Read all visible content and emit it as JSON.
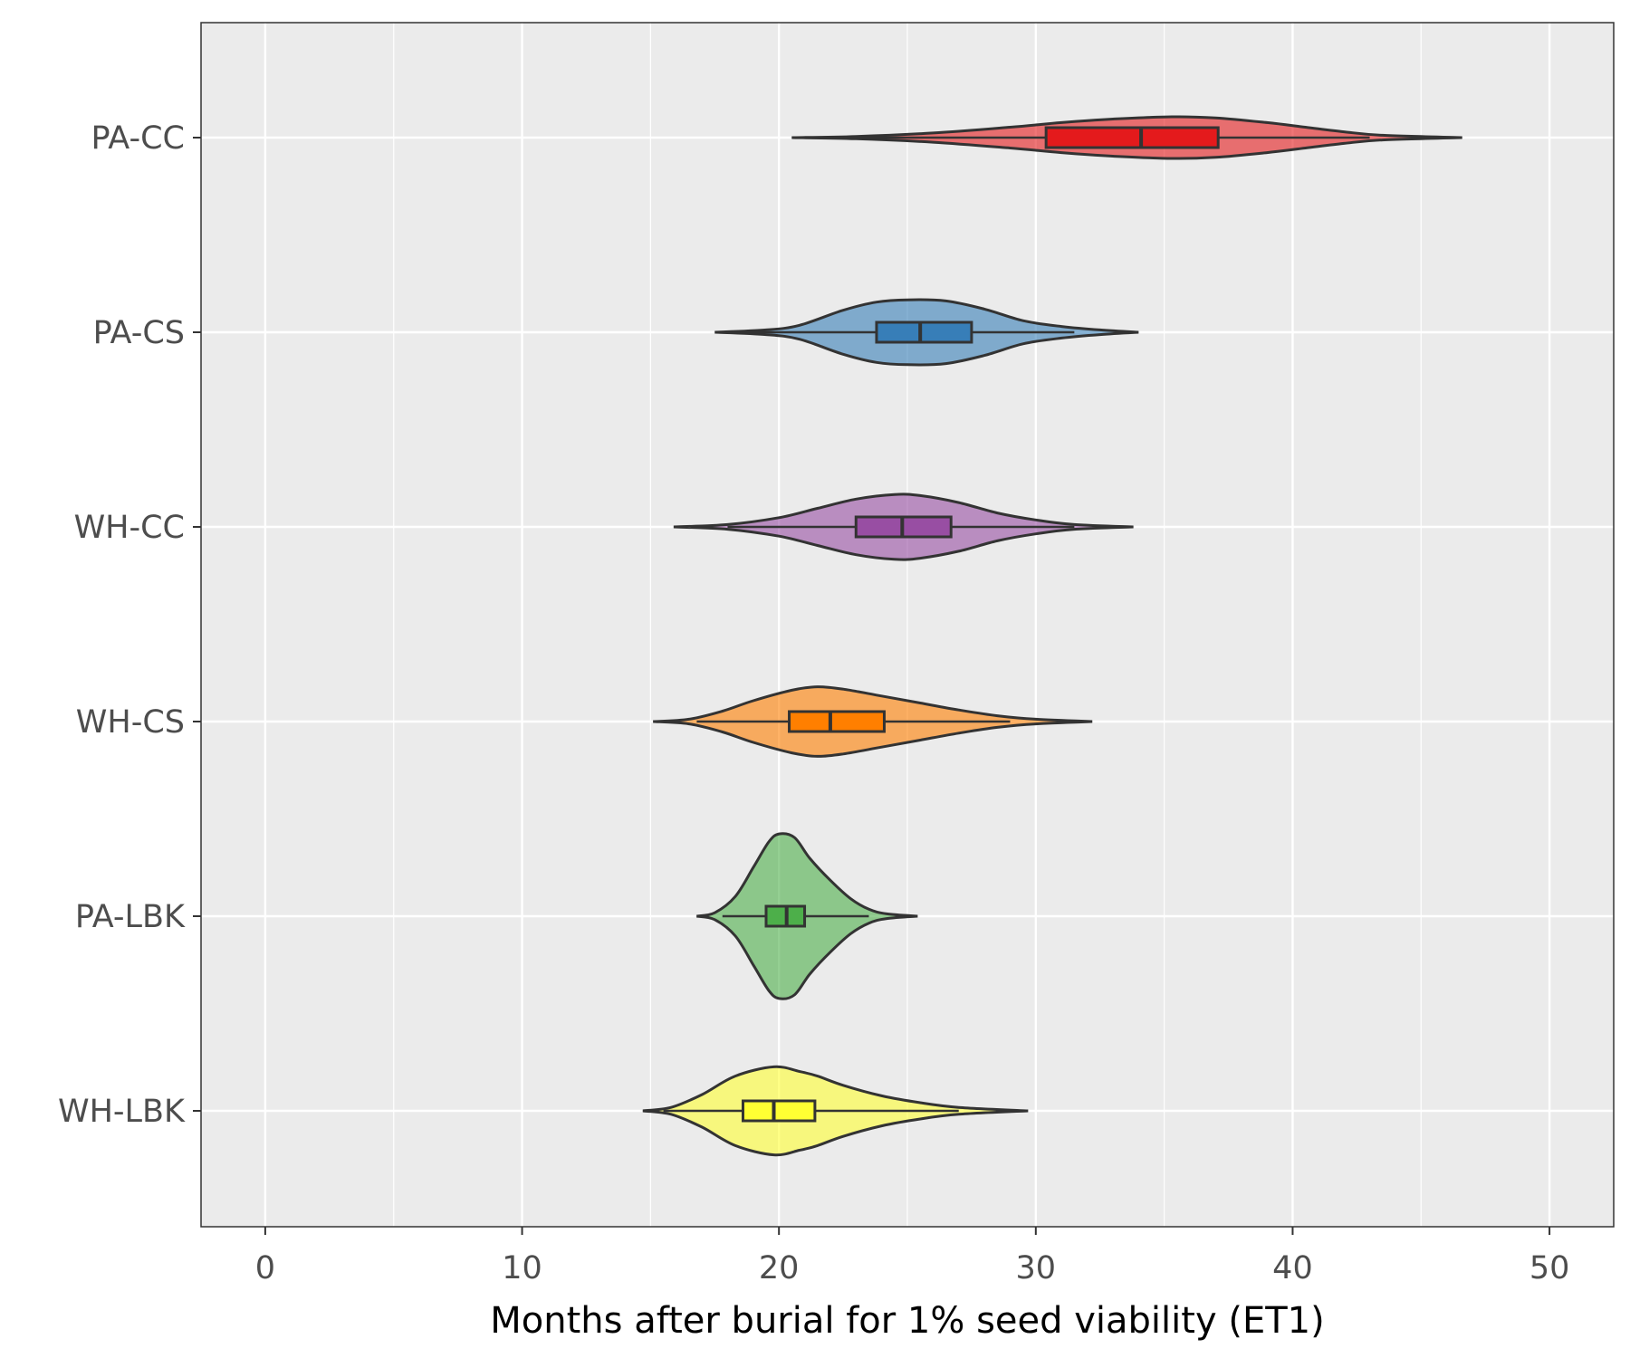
{
  "chart_data": {
    "type": "violin",
    "xlabel": "Months after burial for 1% seed viability (ET1)",
    "ylabel": "",
    "title": "",
    "xlim": [
      -2.5,
      52.5
    ],
    "x_ticks": [
      0,
      10,
      20,
      30,
      40,
      50
    ],
    "x_tick_labels": [
      "0",
      "10",
      "20",
      "30",
      "40",
      "50"
    ],
    "x_minor_gridlines": [
      5,
      15,
      25,
      35,
      45
    ],
    "grid": true,
    "legend": "none",
    "categories": [
      "PA-CC",
      "PA-CS",
      "WH-CC",
      "WH-CS",
      "PA-LBK",
      "WH-LBK"
    ],
    "series": [
      {
        "category": "PA-CC",
        "color": "#e41a1c",
        "min": 20.5,
        "q1": 30.4,
        "median": 34.1,
        "q3": 37.1,
        "max": 46.6,
        "whisker_low": 20.5,
        "whisker_high": 43.0,
        "density": [
          [
            20.5,
            0.0
          ],
          [
            23,
            0.01
          ],
          [
            26,
            0.04
          ],
          [
            29,
            0.09
          ],
          [
            31,
            0.13
          ],
          [
            33,
            0.16
          ],
          [
            35.3,
            0.18
          ],
          [
            37,
            0.17
          ],
          [
            39,
            0.13
          ],
          [
            40.5,
            0.09
          ],
          [
            42,
            0.05
          ],
          [
            43.5,
            0.02
          ],
          [
            46.6,
            0.0
          ]
        ]
      },
      {
        "category": "PA-CS",
        "color": "#377eb8",
        "min": 17.5,
        "q1": 23.8,
        "median": 25.5,
        "q3": 27.5,
        "max": 34.0,
        "whisker_low": 18.5,
        "whisker_high": 31.5,
        "density": [
          [
            17.5,
            0.0
          ],
          [
            19.5,
            0.02
          ],
          [
            20.8,
            0.06
          ],
          [
            22.5,
            0.19
          ],
          [
            23.8,
            0.26
          ],
          [
            25,
            0.28
          ],
          [
            26.5,
            0.27
          ],
          [
            28,
            0.2
          ],
          [
            29.5,
            0.1
          ],
          [
            31,
            0.05
          ],
          [
            32.5,
            0.02
          ],
          [
            34,
            0.0
          ]
        ]
      },
      {
        "category": "WH-CC",
        "color": "#984ea3",
        "min": 15.9,
        "q1": 23.0,
        "median": 24.8,
        "q3": 26.7,
        "max": 33.8,
        "whisker_low": 18.0,
        "whisker_high": 31.5,
        "density": [
          [
            15.9,
            0.0
          ],
          [
            18,
            0.02
          ],
          [
            20,
            0.08
          ],
          [
            21.5,
            0.16
          ],
          [
            23,
            0.24
          ],
          [
            24.5,
            0.28
          ],
          [
            25.5,
            0.27
          ],
          [
            27,
            0.21
          ],
          [
            28.5,
            0.12
          ],
          [
            30,
            0.06
          ],
          [
            31.5,
            0.02
          ],
          [
            33.8,
            0.0
          ]
        ]
      },
      {
        "category": "WH-CS",
        "color": "#ff7f00",
        "min": 15.1,
        "q1": 20.4,
        "median": 22.0,
        "q3": 24.1,
        "max": 32.2,
        "whisker_low": 16.8,
        "whisker_high": 29.0,
        "density": [
          [
            15.1,
            0.0
          ],
          [
            16.5,
            0.02
          ],
          [
            17.8,
            0.09
          ],
          [
            19,
            0.18
          ],
          [
            20.5,
            0.27
          ],
          [
            21.5,
            0.3
          ],
          [
            22.5,
            0.28
          ],
          [
            24,
            0.22
          ],
          [
            25.5,
            0.16
          ],
          [
            27,
            0.1
          ],
          [
            28.5,
            0.05
          ],
          [
            30,
            0.02
          ],
          [
            32.2,
            0.0
          ]
        ]
      },
      {
        "category": "PA-LBK",
        "color": "#4daf4a",
        "min": 16.8,
        "q1": 19.5,
        "median": 20.3,
        "q3": 21.0,
        "max": 25.4,
        "whisker_low": 17.8,
        "whisker_high": 23.5,
        "density": [
          [
            16.8,
            0.0
          ],
          [
            17.5,
            0.03
          ],
          [
            18.3,
            0.17
          ],
          [
            19.0,
            0.42
          ],
          [
            19.6,
            0.64
          ],
          [
            20.0,
            0.71
          ],
          [
            20.6,
            0.68
          ],
          [
            21.2,
            0.5
          ],
          [
            22.0,
            0.31
          ],
          [
            22.8,
            0.15
          ],
          [
            23.5,
            0.06
          ],
          [
            24.2,
            0.02
          ],
          [
            25.4,
            0.0
          ]
        ]
      },
      {
        "category": "WH-LBK",
        "color": "#ffff33",
        "min": 14.7,
        "q1": 18.6,
        "median": 19.8,
        "q3": 21.4,
        "max": 29.7,
        "whisker_low": 15.5,
        "whisker_high": 27.0,
        "density": [
          [
            14.7,
            0.0
          ],
          [
            15.8,
            0.03
          ],
          [
            17,
            0.14
          ],
          [
            18.3,
            0.3
          ],
          [
            19.8,
            0.38
          ],
          [
            20.8,
            0.34
          ],
          [
            21.5,
            0.3
          ],
          [
            22.5,
            0.22
          ],
          [
            24,
            0.13
          ],
          [
            25.5,
            0.07
          ],
          [
            27,
            0.03
          ],
          [
            29.7,
            0.0
          ]
        ]
      }
    ]
  }
}
